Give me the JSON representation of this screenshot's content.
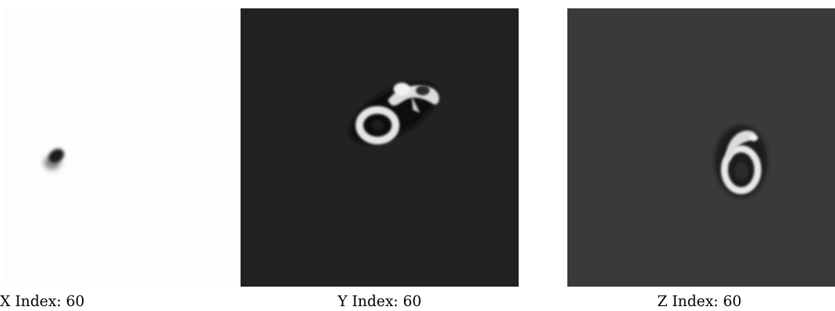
{
  "panels": [
    {
      "caption": "X Index: 60",
      "background": "#fdfdfd"
    },
    {
      "caption": "Y Index: 60",
      "background": "#222222"
    },
    {
      "caption": "Z Index: 60",
      "background": "#3a3a3a"
    }
  ]
}
